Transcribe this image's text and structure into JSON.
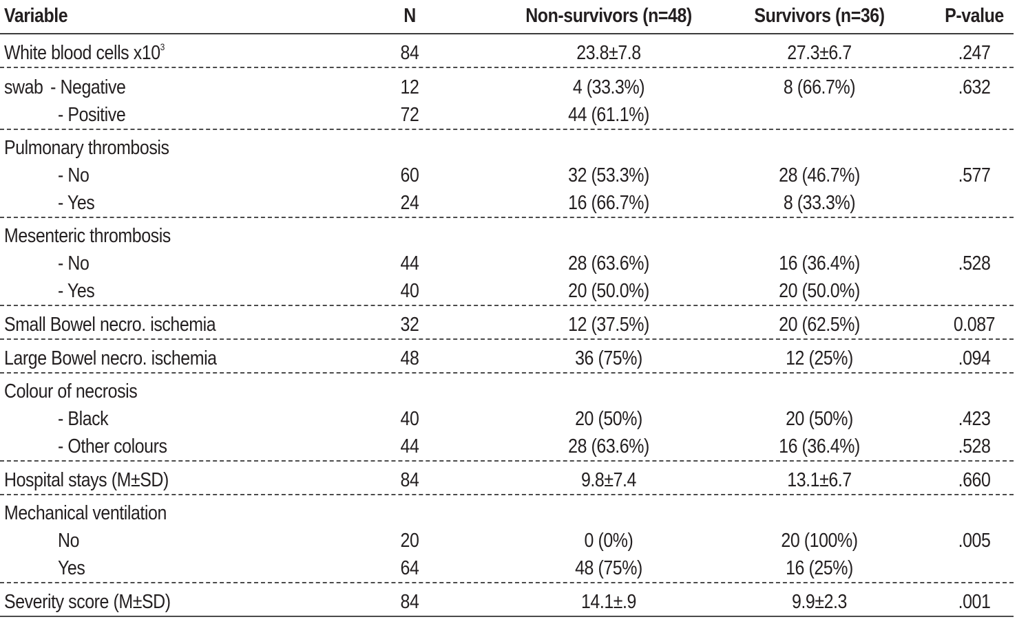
{
  "header": {
    "variable": "Variable",
    "n": "N",
    "non_survivors": "Non-survivors (n=48)",
    "survivors": "Survivors (n=36)",
    "p_value": "P-value"
  },
  "rows": {
    "wbc": {
      "label": "White blood cells x10",
      "sup": "3",
      "n": "84",
      "non": "23.8±7.8",
      "sur": "27.3±6.7",
      "p": ".247"
    },
    "swab_neg": {
      "prefix": "swab",
      "label": "- Negative",
      "n": "12",
      "non": "4 (33.3%)",
      "sur": "8 (66.7%)",
      "p": ".632"
    },
    "swab_pos": {
      "label": "- Positive",
      "n": "72",
      "non": "44 (61.1%)",
      "sur": "",
      "p": ""
    },
    "pt_head": {
      "label": "Pulmonary thrombosis"
    },
    "pt_no": {
      "label": "- No",
      "n": "60",
      "non": "32 (53.3%)",
      "sur": "28 (46.7%)",
      "p": ".577"
    },
    "pt_yes": {
      "label": "- Yes",
      "n": "24",
      "non": "16 (66.7%)",
      "sur": "8 (33.3%)",
      "p": ""
    },
    "mt_head": {
      "label": "Mesenteric thrombosis"
    },
    "mt_no": {
      "label": "- No",
      "n": "44",
      "non": "28 (63.6%)",
      "sur": "16 (36.4%)",
      "p": ".528"
    },
    "mt_yes": {
      "label": "- Yes",
      "n": "40",
      "non": "20 (50.0%)",
      "sur": "20 (50.0%)",
      "p": ""
    },
    "sbn": {
      "label": "Small Bowel necro. ischemia",
      "n": "32",
      "non": "12 (37.5%)",
      "sur": "20 (62.5%)",
      "p": "0.087"
    },
    "lbn": {
      "label": "Large Bowel necro. ischemia",
      "n": "48",
      "non": "36 (75%)",
      "sur": "12 (25%)",
      "p": ".094"
    },
    "col_head": {
      "label": "Colour of necrosis"
    },
    "col_black": {
      "label": "- Black",
      "n": "40",
      "non": "20 (50%)",
      "sur": "20 (50%)",
      "p": ".423"
    },
    "col_other": {
      "label": "- Other colours",
      "n": "44",
      "non": "28 (63.6%)",
      "sur": "16 (36.4%)",
      "p": ".528"
    },
    "hs": {
      "label": "Hospital stays (M±SD)",
      "n": "84",
      "non": "9.8±7.4",
      "sur": "13.1±6.7",
      "p": ".660"
    },
    "mv_head": {
      "label": "Mechanical ventilation"
    },
    "mv_no": {
      "label": "No",
      "n": "20",
      "non": "0 (0%)",
      "sur": "20 (100%)",
      "p": ".005"
    },
    "mv_yes": {
      "label": "Yes",
      "n": "64",
      "non": "48 (75%)",
      "sur": "16 (25%)",
      "p": ""
    },
    "sev": {
      "label": "Severity score (M±SD)",
      "n": "84",
      "non": "14.1±.9",
      "sur": "9.9±2.3",
      "p": ".001"
    }
  }
}
